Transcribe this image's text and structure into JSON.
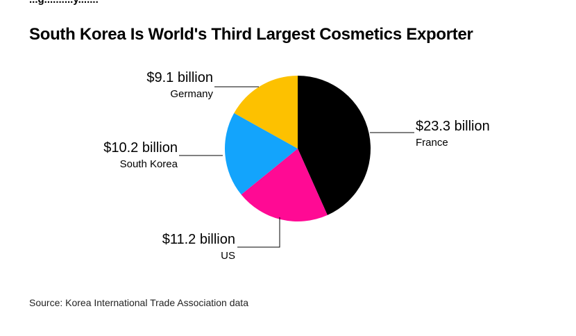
{
  "header": {
    "top_clip_text": "...g..........y.......",
    "title": "South Korea Is World's Third Largest Cosmetics Exporter"
  },
  "chart_data": {
    "type": "pie",
    "title": "South Korea Is World's Third Largest Cosmetics Exporter",
    "unit": "$ billion",
    "slices": [
      {
        "label": "France",
        "value": 23.3,
        "value_label": "$23.3 billion",
        "color": "#000000"
      },
      {
        "label": "US",
        "value": 11.2,
        "value_label": "$11.2 billion",
        "color": "#ff0a94"
      },
      {
        "label": "South Korea",
        "value": 10.2,
        "value_label": "$10.2 billion",
        "color": "#13a4fc"
      },
      {
        "label": "Germany",
        "value": 9.1,
        "value_label": "$9.1 billion",
        "color": "#fdc100"
      }
    ],
    "start": "12 o'clock",
    "direction": "clockwise",
    "legend": "none (direct callout labels)"
  },
  "footer": {
    "source": "Source: Korea International Trade Association data"
  }
}
